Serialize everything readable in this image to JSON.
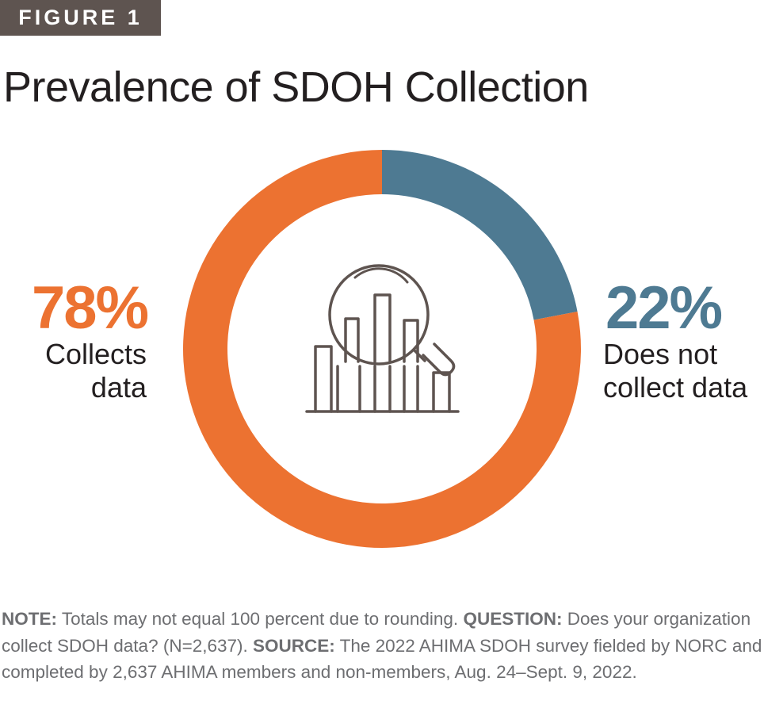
{
  "figure_label": "FIGURE 1",
  "chart_data": {
    "type": "pie",
    "title": "Prevalence of SDOH Collection",
    "slices": [
      {
        "label": "Collects data",
        "label_lines": [
          "Collects",
          "data"
        ],
        "value": 78,
        "value_label": "78%",
        "color": "#ec7231"
      },
      {
        "label": "Does not collect data",
        "label_lines": [
          "Does not",
          "collect data"
        ],
        "value": 22,
        "value_label": "22%",
        "color": "#4e7a92"
      }
    ],
    "center_icon": "magnifying-glass-bar-chart-icon"
  },
  "footnote": {
    "note_label": "NOTE:",
    "note_text": " Totals may not equal 100 percent due to rounding. ",
    "question_label": "QUESTION:",
    "question_text": " Does your organization collect SDOH data? (N=2,637). ",
    "source_label": "SOURCE:",
    "source_text": " The 2022 AHIMA SDOH survey fielded by NORC and completed by 2,637 AHIMA members and non-members, Aug. 24–Sept. 9, 2022."
  }
}
